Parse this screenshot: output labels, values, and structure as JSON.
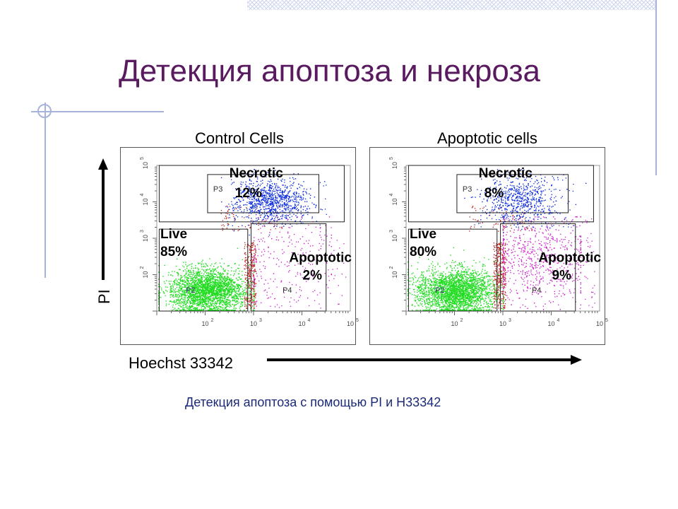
{
  "page": {
    "title": "Детекция апоптоза и некроза",
    "caption": "Детекция апоптоза с помощью PI и H33342",
    "y_axis_title": "PI",
    "x_axis_title": "Hoechst 33342"
  },
  "colors": {
    "title": "#5a1a60",
    "caption": "#1a2a78",
    "live": "#22dd22",
    "necrotic": "#1030e0",
    "apoptotic": "#cc22cc",
    "debris": "#c02020"
  },
  "chart_data": [
    {
      "type": "scatter",
      "title": "Control Cells",
      "x_scale": "log",
      "y_scale": "log",
      "xlim": [
        10,
        100000
      ],
      "ylim": [
        10,
        100000
      ],
      "x_ticks": [
        "10",
        "10",
        "10",
        "10"
      ],
      "x_tick_exps": [
        "2",
        "3",
        "4",
        "5"
      ],
      "y_ticks": [
        "10",
        "10",
        "10",
        "10"
      ],
      "y_tick_exps": [
        "2",
        "3",
        "4",
        "5"
      ],
      "gates": [
        {
          "id": "P3",
          "name": "Necrotic",
          "percent": "12%"
        },
        {
          "id": "P2",
          "name": "Live",
          "percent": "85%"
        },
        {
          "id": "P4",
          "name": "Apoptotic",
          "percent": "2%"
        }
      ]
    },
    {
      "type": "scatter",
      "title": "Apoptotic cells",
      "x_scale": "log",
      "y_scale": "log",
      "xlim": [
        10,
        100000
      ],
      "ylim": [
        10,
        100000
      ],
      "x_ticks": [
        "10",
        "10",
        "10",
        "10"
      ],
      "x_tick_exps": [
        "2",
        "3",
        "4",
        "5"
      ],
      "y_ticks": [
        "10",
        "10",
        "10",
        "10"
      ],
      "y_tick_exps": [
        "2",
        "3",
        "4",
        "5"
      ],
      "gates": [
        {
          "id": "P3",
          "name": "Necrotic",
          "percent": "8%"
        },
        {
          "id": "P2",
          "name": "Live",
          "percent": "80%"
        },
        {
          "id": "P4",
          "name": "Apoptotic",
          "percent": "9%"
        }
      ]
    }
  ]
}
